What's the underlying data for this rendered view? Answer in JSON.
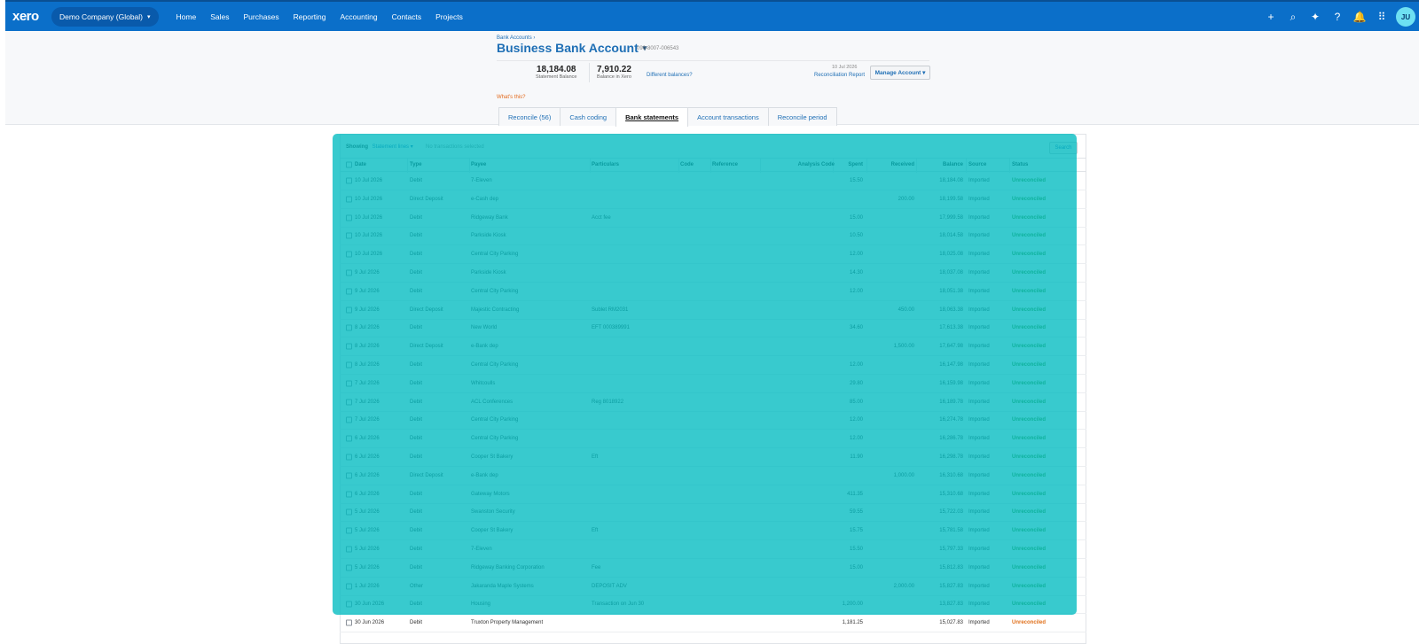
{
  "topnav": {
    "logo": "xero",
    "org_name": "Demo Company (Global)",
    "org_caret": "▾",
    "items": [
      "Home",
      "Sales",
      "Purchases",
      "Reporting",
      "Accounting",
      "Contacts",
      "Projects"
    ],
    "icons": [
      {
        "name": "add-icon",
        "glyph": "+"
      },
      {
        "name": "search-icon",
        "glyph": "⌕"
      },
      {
        "name": "sparkle-icon",
        "glyph": "✦"
      },
      {
        "name": "help-icon",
        "glyph": "?"
      },
      {
        "name": "bell-icon",
        "glyph": "🔔"
      },
      {
        "name": "apps-grid-icon",
        "glyph": "⠿"
      }
    ],
    "avatar_initials": "JU",
    "bar_color": "#0b6fc9"
  },
  "header": {
    "breadcrumb": "Bank Accounts ›",
    "title": "Business Bank Account",
    "title_caret": "▾",
    "account_number": "090-8007-006543",
    "statement_balance": "18,184.08",
    "statement_balance_label": "Statement Balance",
    "xero_balance": "7,910.22",
    "xero_balance_label": "Balance in Xero",
    "different_balances": "Different balances?",
    "report_date": "10 Jul 2026",
    "report_link": "Reconciliation Report",
    "manage_account": "Manage Account ▾",
    "whats_this": "What's this?"
  },
  "tabs": [
    {
      "label": "Reconcile (56)",
      "active": false
    },
    {
      "label": "Cash coding",
      "active": false
    },
    {
      "label": "Bank statements",
      "active": true
    },
    {
      "label": "Account transactions",
      "active": false
    },
    {
      "label": "Reconcile period",
      "active": false
    }
  ],
  "toolbar": {
    "showing_label": "Showing",
    "showing_value": "Statement lines ▾",
    "selection_status": "No transactions selected",
    "search_button": "Search"
  },
  "table": {
    "columns": [
      "Date",
      "Type",
      "Payee",
      "Particulars",
      "Code",
      "Reference",
      "Analysis Code",
      "Spent",
      "Received",
      "Balance",
      "Source",
      "Status"
    ],
    "rows": [
      [
        "10 Jul 2026",
        "Debit",
        "7-Eleven",
        "",
        "",
        "",
        "",
        "15.50",
        "",
        "18,184.08",
        "Imported",
        "Unreconciled"
      ],
      [
        "10 Jul 2026",
        "Direct Deposit",
        "e-Cash dep",
        "",
        "",
        "",
        "",
        "",
        "200.00",
        "18,199.58",
        "Imported",
        "Unreconciled"
      ],
      [
        "10 Jul 2026",
        "Debit",
        "Ridgeway Bank",
        "Acct fee",
        "",
        "",
        "",
        "15.00",
        "",
        "17,999.58",
        "Imported",
        "Unreconciled"
      ],
      [
        "10 Jul 2026",
        "Debit",
        "Parkside Kiosk",
        "",
        "",
        "",
        "",
        "10.50",
        "",
        "18,014.58",
        "Imported",
        "Unreconciled"
      ],
      [
        "10 Jul 2026",
        "Debit",
        "Central City Parking",
        "",
        "",
        "",
        "",
        "12.00",
        "",
        "18,025.08",
        "Imported",
        "Unreconciled"
      ],
      [
        "9 Jul 2026",
        "Debit",
        "Parkside Kiosk",
        "",
        "",
        "",
        "",
        "14.30",
        "",
        "18,037.08",
        "Imported",
        "Unreconciled"
      ],
      [
        "9 Jul 2026",
        "Debit",
        "Central City Parking",
        "",
        "",
        "",
        "",
        "12.00",
        "",
        "18,051.38",
        "Imported",
        "Unreconciled"
      ],
      [
        "9 Jul 2026",
        "Direct Deposit",
        "Majestic Contracting",
        "Sublet RM2031",
        "",
        "",
        "",
        "",
        "450.00",
        "18,063.38",
        "Imported",
        "Unreconciled"
      ],
      [
        "8 Jul 2026",
        "Debit",
        "New World",
        "EFT 000389991",
        "",
        "",
        "",
        "34.60",
        "",
        "17,613.38",
        "Imported",
        "Unreconciled"
      ],
      [
        "8 Jul 2026",
        "Direct Deposit",
        "e-Bank dep",
        "",
        "",
        "",
        "",
        "",
        "1,500.00",
        "17,647.98",
        "Imported",
        "Unreconciled"
      ],
      [
        "8 Jul 2026",
        "Debit",
        "Central City Parking",
        "",
        "",
        "",
        "",
        "12.00",
        "",
        "16,147.98",
        "Imported",
        "Unreconciled"
      ],
      [
        "7 Jul 2026",
        "Debit",
        "Whitcoulls",
        "",
        "",
        "",
        "",
        "29.80",
        "",
        "16,159.98",
        "Imported",
        "Unreconciled"
      ],
      [
        "7 Jul 2026",
        "Debit",
        "ACL Conferences",
        "Reg 8018922",
        "",
        "",
        "",
        "85.00",
        "",
        "16,189.78",
        "Imported",
        "Unreconciled"
      ],
      [
        "7 Jul 2026",
        "Debit",
        "Central City Parking",
        "",
        "",
        "",
        "",
        "12.00",
        "",
        "16,274.78",
        "Imported",
        "Unreconciled"
      ],
      [
        "6 Jul 2026",
        "Debit",
        "Central City Parking",
        "",
        "",
        "",
        "",
        "12.00",
        "",
        "16,286.78",
        "Imported",
        "Unreconciled"
      ],
      [
        "6 Jul 2026",
        "Debit",
        "Cooper St Bakery",
        "Eft",
        "",
        "",
        "",
        "11.90",
        "",
        "16,298.78",
        "Imported",
        "Unreconciled"
      ],
      [
        "6 Jul 2026",
        "Direct Deposit",
        "e-Bank dep",
        "",
        "",
        "",
        "",
        "",
        "1,000.00",
        "16,310.68",
        "Imported",
        "Unreconciled"
      ],
      [
        "6 Jul 2026",
        "Debit",
        "Gateway Motors",
        "",
        "",
        "",
        "",
        "411.35",
        "",
        "15,310.68",
        "Imported",
        "Unreconciled"
      ],
      [
        "5 Jul 2026",
        "Debit",
        "Swanston Security",
        "",
        "",
        "",
        "",
        "59.55",
        "",
        "15,722.03",
        "Imported",
        "Unreconciled"
      ],
      [
        "5 Jul 2026",
        "Debit",
        "Cooper St Bakery",
        "Eft",
        "",
        "",
        "",
        "15.75",
        "",
        "15,781.58",
        "Imported",
        "Unreconciled"
      ],
      [
        "5 Jul 2026",
        "Debit",
        "7-Eleven",
        "",
        "",
        "",
        "",
        "15.50",
        "",
        "15,797.33",
        "Imported",
        "Unreconciled"
      ],
      [
        "5 Jul 2026",
        "Debit",
        "Ridgeway Banking Corporation",
        "Fee",
        "",
        "",
        "",
        "15.00",
        "",
        "15,812.83",
        "Imported",
        "Unreconciled"
      ],
      [
        "1 Jul 2026",
        "Other",
        "Jakaranda Maple Systems",
        "DEPOSIT ADV",
        "",
        "",
        "",
        "",
        "2,000.00",
        "15,827.83",
        "Imported",
        "Unreconciled"
      ],
      [
        "30 Jun 2026",
        "Debit",
        "Housing",
        "Transaction on Jun 30",
        "",
        "",
        "",
        "1,200.00",
        "",
        "13,827.83",
        "Imported",
        "Unreconciled"
      ],
      [
        "30 Jun 2026",
        "Debit",
        "Truxton Property Management",
        "",
        "",
        "",
        "",
        "1,181.25",
        "",
        "15,027.83",
        "Imported",
        "Unreconciled"
      ]
    ]
  },
  "colors": {
    "highlight_overlay": "#00bbc0",
    "unreconciled_status": "#3e8f1f",
    "unreconciled_status_last": "#e0701b",
    "link": "#1f6fb5"
  }
}
